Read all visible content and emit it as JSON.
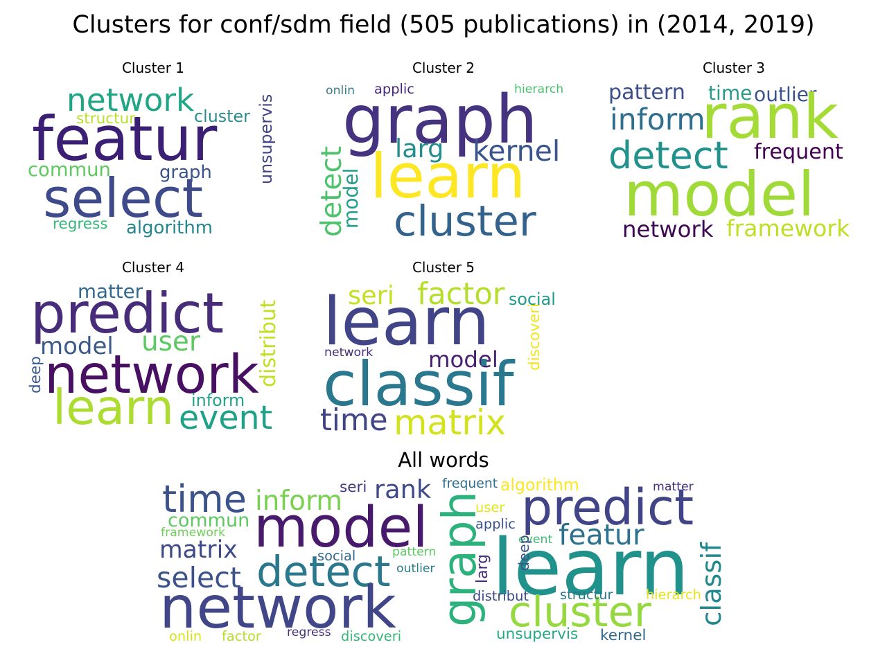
{
  "title": "Clusters for conf/sdm field (505 publications) in (2014, 2019)",
  "clouds": [
    {
      "id": "cluster-1",
      "title": "Cluster 1",
      "words": [
        {
          "text": "network",
          "color": "#21a685"
        },
        {
          "text": "featur",
          "color": "#3b1f74"
        },
        {
          "text": "cluster",
          "color": "#2c8c8e"
        },
        {
          "text": "structur",
          "color": "#b8de29"
        },
        {
          "text": "unsupervis",
          "color": "#414487"
        },
        {
          "text": "commun",
          "color": "#5ec962"
        },
        {
          "text": "graph",
          "color": "#3a538b"
        },
        {
          "text": "select",
          "color": "#3e4a89"
        },
        {
          "text": "regress",
          "color": "#35b779"
        },
        {
          "text": "algorithm",
          "color": "#24878e"
        }
      ]
    },
    {
      "id": "cluster-2",
      "title": "Cluster 2",
      "words": [
        {
          "text": "onlin",
          "color": "#3d7a8e"
        },
        {
          "text": "applic",
          "color": "#482979"
        },
        {
          "text": "hierarch",
          "color": "#4ac16d"
        },
        {
          "text": "graph",
          "color": "#46337f"
        },
        {
          "text": "larg",
          "color": "#218e8d"
        },
        {
          "text": "kernel",
          "color": "#3a548c"
        },
        {
          "text": "detect",
          "color": "#4ec36b"
        },
        {
          "text": "model",
          "color": "#1f9e89"
        },
        {
          "text": "learn",
          "color": "#fde725"
        },
        {
          "text": "cluster",
          "color": "#33638d"
        }
      ]
    },
    {
      "id": "cluster-3",
      "title": "Cluster 3",
      "words": [
        {
          "text": "pattern",
          "color": "#3d4e8a"
        },
        {
          "text": "time",
          "color": "#2a9a8a"
        },
        {
          "text": "outlier",
          "color": "#3b528b"
        },
        {
          "text": "rank",
          "color": "#a5db36"
        },
        {
          "text": "inform",
          "color": "#2e6e8e"
        },
        {
          "text": "detect",
          "color": "#21918c"
        },
        {
          "text": "frequent",
          "color": "#440154"
        },
        {
          "text": "model",
          "color": "#a0da39"
        },
        {
          "text": "network",
          "color": "#3e0751"
        },
        {
          "text": "framework",
          "color": "#bddf26"
        }
      ]
    },
    {
      "id": "cluster-4",
      "title": "Cluster 4",
      "words": [
        {
          "text": "matter",
          "color": "#31688e"
        },
        {
          "text": "predict",
          "color": "#472c7a"
        },
        {
          "text": "distribut",
          "color": "#c2df23"
        },
        {
          "text": "model",
          "color": "#3b5a8a"
        },
        {
          "text": "user",
          "color": "#5ec962"
        },
        {
          "text": "deep",
          "color": "#38598c"
        },
        {
          "text": "network",
          "color": "#471063"
        },
        {
          "text": "inform",
          "color": "#20a386"
        },
        {
          "text": "learn",
          "color": "#addc30"
        },
        {
          "text": "event",
          "color": "#1fa188"
        }
      ]
    },
    {
      "id": "cluster-5",
      "title": "Cluster 5",
      "words": [
        {
          "text": "seri",
          "color": "#c5e021"
        },
        {
          "text": "factor",
          "color": "#b5de2b"
        },
        {
          "text": "social",
          "color": "#1e9b8a"
        },
        {
          "text": "learn",
          "color": "#414487"
        },
        {
          "text": "discoveri",
          "color": "#f1e51d"
        },
        {
          "text": "network",
          "color": "#46307e"
        },
        {
          "text": "model",
          "color": "#482071"
        },
        {
          "text": "classif",
          "color": "#2a788e"
        },
        {
          "text": "time",
          "color": "#414487"
        },
        {
          "text": "matrix",
          "color": "#d2e21b"
        }
      ]
    },
    {
      "id": "all-words",
      "title": "All words",
      "words": [
        {
          "text": "time",
          "color": "#3b528b"
        },
        {
          "text": "inform",
          "color": "#7ad151"
        },
        {
          "text": "seri",
          "color": "#443983"
        },
        {
          "text": "rank",
          "color": "#3e4989"
        },
        {
          "text": "frequent",
          "color": "#2f6c8e"
        },
        {
          "text": "algorithm",
          "color": "#fde725"
        },
        {
          "text": "matter",
          "color": "#46307e"
        },
        {
          "text": "predict",
          "color": "#414487"
        },
        {
          "text": "commun",
          "color": "#5ec962"
        },
        {
          "text": "model",
          "color": "#481a6c"
        },
        {
          "text": "user",
          "color": "#e2e418"
        },
        {
          "text": "applic",
          "color": "#3b528b"
        },
        {
          "text": "framework",
          "color": "#6ece58"
        },
        {
          "text": "featur",
          "color": "#2c728e"
        },
        {
          "text": "graph",
          "color": "#2db27d"
        },
        {
          "text": "learn",
          "color": "#21918c"
        },
        {
          "text": "event",
          "color": "#3fbc73"
        },
        {
          "text": "matrix",
          "color": "#3e4989"
        },
        {
          "text": "deep",
          "color": "#3b528b"
        },
        {
          "text": "classif",
          "color": "#23888e"
        },
        {
          "text": "select",
          "color": "#3b528b"
        },
        {
          "text": "detect",
          "color": "#2a788e"
        },
        {
          "text": "social",
          "color": "#31688e"
        },
        {
          "text": "pattern",
          "color": "#5ec962"
        },
        {
          "text": "outlier",
          "color": "#287d8e"
        },
        {
          "text": "larg",
          "color": "#472d7b"
        },
        {
          "text": "network",
          "color": "#404688"
        },
        {
          "text": "cluster",
          "color": "#95d840"
        },
        {
          "text": "distribut",
          "color": "#3e4a89"
        },
        {
          "text": "structur",
          "color": "#2a788e"
        },
        {
          "text": "hierarch",
          "color": "#e8e419"
        },
        {
          "text": "onlin",
          "color": "#d8e219"
        },
        {
          "text": "factor",
          "color": "#b5de2b"
        },
        {
          "text": "regress",
          "color": "#46337e"
        },
        {
          "text": "discoveri",
          "color": "#35b779"
        },
        {
          "text": "unsupervis",
          "color": "#24aa83"
        },
        {
          "text": "kernel",
          "color": "#30698e"
        }
      ]
    }
  ]
}
